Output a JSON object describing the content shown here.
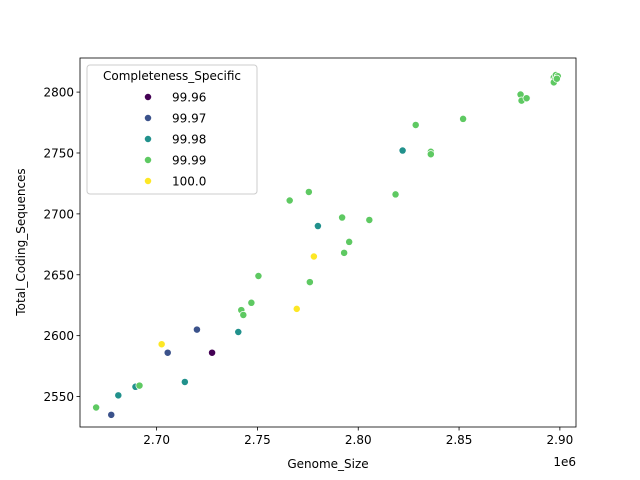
{
  "chart_data": {
    "type": "scatter",
    "xlabel": "Genome_Size",
    "ylabel": "Total_Coding_Sequences",
    "x_offset_label": "1e6",
    "xlim": [
      2662000,
      2908000
    ],
    "ylim": [
      2525,
      2828
    ],
    "xticks": [
      2.7,
      2.75,
      2.8,
      2.85,
      2.9
    ],
    "xtick_labels": [
      "2.70",
      "2.75",
      "2.80",
      "2.85",
      "2.90"
    ],
    "yticks": [
      2550,
      2600,
      2650,
      2700,
      2750,
      2800
    ],
    "ytick_labels": [
      "2550",
      "2600",
      "2650",
      "2700",
      "2750",
      "2800"
    ],
    "grid": false,
    "legend": {
      "title": "Completeness_Specific",
      "placement": "top-left",
      "entries": [
        {
          "label": "99.96",
          "color": "#440154"
        },
        {
          "label": "99.97",
          "color": "#3b528b"
        },
        {
          "label": "99.98",
          "color": "#21918c"
        },
        {
          "label": "99.99",
          "color": "#5ec962"
        },
        {
          "label": "100.0",
          "color": "#fde725"
        }
      ]
    },
    "series": [
      {
        "name": "99.96",
        "color": "#440154",
        "points": [
          [
            2727500,
            2586
          ]
        ]
      },
      {
        "name": "99.97",
        "color": "#3b528b",
        "points": [
          [
            2677500,
            2535
          ],
          [
            2705500,
            2586
          ],
          [
            2720000,
            2605
          ]
        ]
      },
      {
        "name": "99.98",
        "color": "#21918c",
        "points": [
          [
            2681000,
            2551
          ],
          [
            2689500,
            2558
          ],
          [
            2714000,
            2562
          ],
          [
            2740500,
            2603
          ],
          [
            2780000,
            2690
          ],
          [
            2822000,
            2752
          ]
        ]
      },
      {
        "name": "99.99",
        "color": "#5ec962",
        "points": [
          [
            2670000,
            2541
          ],
          [
            2691500,
            2559
          ],
          [
            2742000,
            2621
          ],
          [
            2743000,
            2617
          ],
          [
            2747000,
            2627
          ],
          [
            2750500,
            2649
          ],
          [
            2766000,
            2711
          ],
          [
            2775500,
            2718
          ],
          [
            2776000,
            2644
          ],
          [
            2792000,
            2697
          ],
          [
            2793000,
            2668
          ],
          [
            2795500,
            2677
          ],
          [
            2805500,
            2695
          ],
          [
            2818500,
            2716
          ],
          [
            2828500,
            2773
          ],
          [
            2836000,
            2751
          ],
          [
            2836000,
            2749
          ],
          [
            2852000,
            2778
          ],
          [
            2880500,
            2798
          ],
          [
            2881000,
            2793
          ],
          [
            2883500,
            2795
          ],
          [
            2897000,
            2812
          ],
          [
            2897500,
            2810
          ],
          [
            2898000,
            2814
          ],
          [
            2899000,
            2813
          ],
          [
            2897000,
            2808
          ],
          [
            2898500,
            2811
          ]
        ]
      },
      {
        "name": "100.0",
        "color": "#fde725",
        "points": [
          [
            2702500,
            2593
          ],
          [
            2769500,
            2622
          ],
          [
            2778000,
            2665
          ]
        ]
      }
    ]
  }
}
